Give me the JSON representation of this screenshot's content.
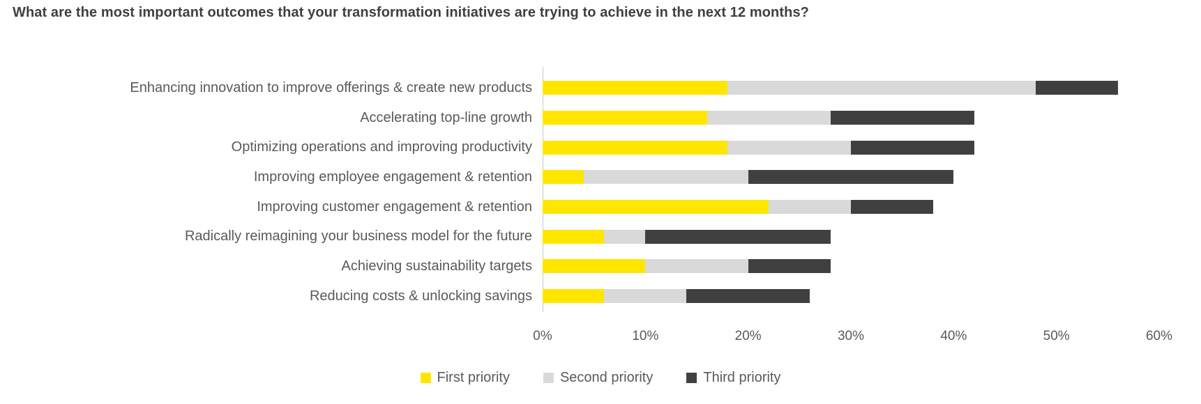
{
  "title": "What are the most important outcomes that your transformation initiatives are trying to achieve in the next 12 months?",
  "chart_data": {
    "type": "bar",
    "orientation": "horizontal",
    "stacked": true,
    "title": "What are the most important outcomes that your transformation initiatives are trying to achieve in the next 12 months?",
    "categories": [
      "Enhancing innovation to improve offerings & create new products",
      "Accelerating top-line growth",
      "Optimizing operations and improving productivity",
      "Improving employee engagement & retention",
      "Improving customer engagement & retention",
      "Radically reimagining your business model for the future",
      "Achieving sustainability targets",
      "Reducing costs & unlocking savings"
    ],
    "series": [
      {
        "name": "First priority",
        "color": "#FFE600",
        "values": [
          18,
          16,
          18,
          4,
          22,
          6,
          10,
          6
        ]
      },
      {
        "name": "Second priority",
        "color": "#D9D9D9",
        "values": [
          30,
          12,
          12,
          16,
          8,
          4,
          10,
          8
        ]
      },
      {
        "name": "Third priority",
        "color": "#404040",
        "values": [
          8,
          14,
          12,
          20,
          8,
          18,
          8,
          12
        ]
      }
    ],
    "totals": [
      56,
      42,
      42,
      40,
      38,
      28,
      28,
      26
    ],
    "xlabel": "",
    "ylabel": "",
    "xlim": [
      0,
      60
    ],
    "x_ticks": [
      "0%",
      "10%",
      "20%",
      "30%",
      "40%",
      "50%",
      "60%"
    ],
    "x_tick_values": [
      0,
      10,
      20,
      30,
      40,
      50,
      60
    ],
    "grid": false,
    "legend_position": "bottom-center"
  },
  "colors": {
    "background": "#FFFFFF",
    "title_text": "#3F3F3F",
    "label_text": "#595959",
    "axis_line": "#C9C9C9"
  }
}
